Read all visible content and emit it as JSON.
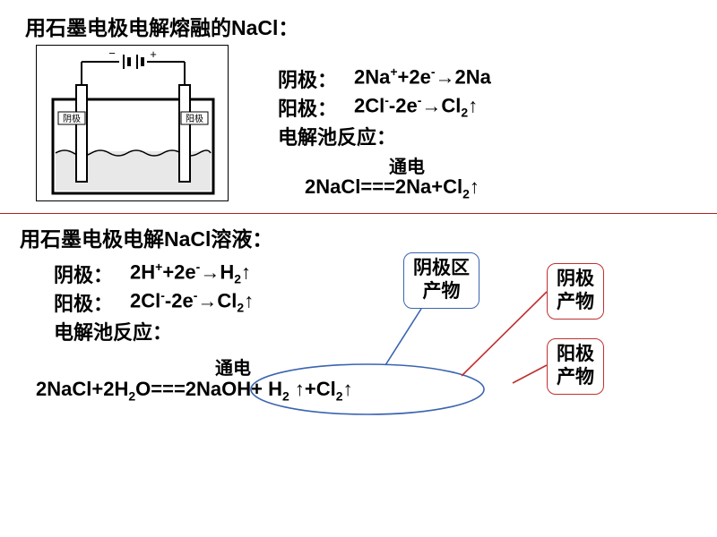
{
  "section1": {
    "title": "用石墨电极电解熔融的NaCl：",
    "cathode_label": "阴极：",
    "cathode_eq": "2Na<sup>+</sup>+2e<sup>-</sup>→2Na",
    "anode_label": "阳极：",
    "anode_eq": "2Cl<sup>-</sup>-2e<sup>-</sup>→Cl<span class='sub'>2</span>↑",
    "cell_label": "电解池反应：",
    "over_arrow": "通电",
    "overall_eq": "2NaCl===2Na+Cl<span class='sub'>2</span>↑",
    "diagram": {
      "neg": "−",
      "pos": "+",
      "cathode_tag": "阴极",
      "anode_tag": "阳极",
      "colors": {
        "stroke": "#000000",
        "liquid": "#e8e8e8"
      }
    }
  },
  "divider_color": "#b02020",
  "section2": {
    "title": "用石墨电极电解NaCl溶液：",
    "cathode_label": "阴极：",
    "cathode_eq": "2H<sup>+</sup>+2e<sup>-</sup>→H<span class='sub'>2</span>↑",
    "anode_label": "阳极：",
    "anode_eq": "2Cl<sup>-</sup>-2e<sup>-</sup>→Cl<span class='sub'>2</span>↑",
    "cell_label": "电解池反应：",
    "over_arrow": "通电",
    "overall_eq": "2NaCl+2H<span class='sub'>2</span>O===2NaOH+ H<span class='sub'>2</span> ↑+Cl<span class='sub'>2</span>↑",
    "callouts": {
      "cathode_zone": "阴极区\n产物",
      "cathode_prod": "阴极\n产物",
      "anode_prod": "阳极\n产物"
    },
    "colors": {
      "ellipse": "#3a64b0",
      "zone_box": "#3a64b0",
      "prod_box": "#c03030",
      "connector": "#c03030"
    }
  }
}
